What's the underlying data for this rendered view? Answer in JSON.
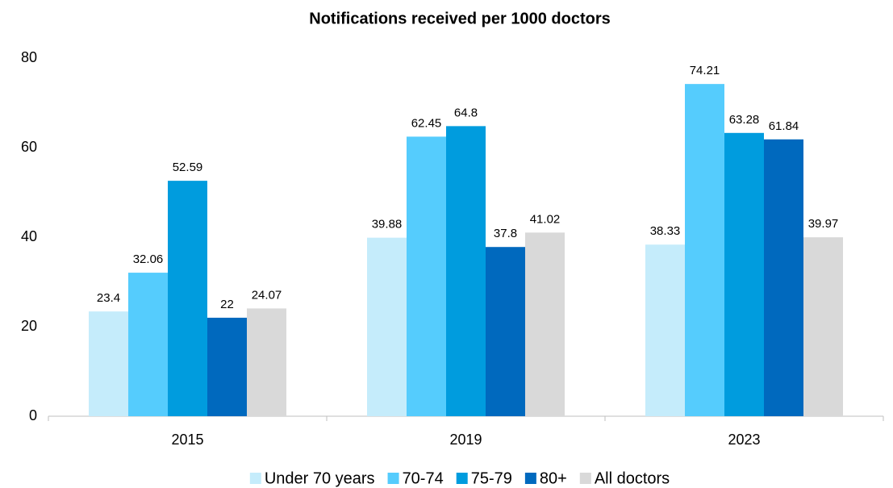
{
  "chart_data": {
    "type": "bar",
    "title": "Notifications received per 1000 doctors",
    "categories": [
      "2015",
      "2019",
      "2023"
    ],
    "series": [
      {
        "name": "Under 70 years",
        "color": "#c5ecfb",
        "values": [
          23.4,
          39.88,
          38.33
        ]
      },
      {
        "name": "70-74",
        "color": "#55ccfd",
        "values": [
          32.06,
          62.45,
          74.21
        ]
      },
      {
        "name": "75-79",
        "color": "#009cde",
        "values": [
          52.59,
          64.8,
          63.28
        ]
      },
      {
        "name": "80+",
        "color": "#0069be",
        "values": [
          22,
          37.8,
          61.84
        ]
      },
      {
        "name": "All doctors",
        "color": "#d9d9d9",
        "values": [
          24.07,
          41.02,
          39.97
        ]
      }
    ],
    "ylim": [
      0,
      80
    ],
    "yticks": [
      0,
      20,
      40,
      60,
      80
    ],
    "grid": false,
    "legend": "bottom"
  }
}
